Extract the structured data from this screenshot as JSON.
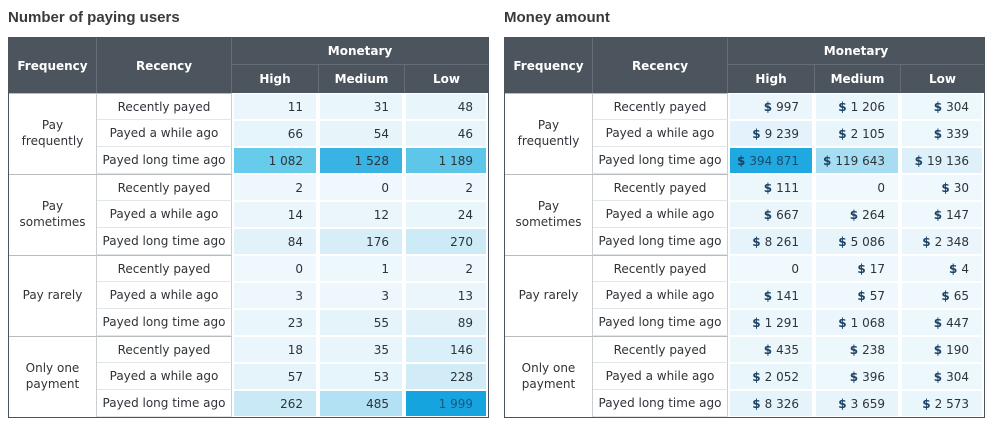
{
  "colors": {
    "header_bg": "#4c545e",
    "heatmap_max_users": "#16a4df",
    "heatmap_max_money": "#1fa9e0",
    "dollar_sign": "#1d4265",
    "frame_border": "#4b535d"
  },
  "chart_data": [
    {
      "type": "heatmap",
      "title": "Number of paying users",
      "headers": {
        "frequency": "Frequency",
        "recency": "Recency",
        "monetary": "Monetary",
        "levels": [
          "High",
          "Medium",
          "Low"
        ]
      },
      "columns": [
        "High",
        "Medium",
        "Low"
      ],
      "groups": [
        {
          "frequency": "Pay frequently",
          "rows": [
            {
              "recency": "Recently payed",
              "cells": [
                {
                  "v": 11,
                  "d": "11",
                  "bg": "#eaf6fc"
                },
                {
                  "v": 31,
                  "d": "31",
                  "bg": "#e9f6fc"
                },
                {
                  "v": 48,
                  "d": "48",
                  "bg": "#e8f5fb"
                }
              ]
            },
            {
              "recency": "Payed a while ago",
              "cells": [
                {
                  "v": 66,
                  "d": "66",
                  "bg": "#e6f4fb"
                },
                {
                  "v": 54,
                  "d": "54",
                  "bg": "#e7f5fb"
                },
                {
                  "v": 46,
                  "d": "46",
                  "bg": "#e8f5fb"
                }
              ]
            },
            {
              "recency": "Payed long time ago",
              "cells": [
                {
                  "v": 1082,
                  "d": "1 082",
                  "bg": "#67cbeb"
                },
                {
                  "v": 1528,
                  "d": "1 528",
                  "bg": "#39b3e3"
                },
                {
                  "v": 1189,
                  "d": "1 189",
                  "bg": "#5ec6e9"
                }
              ]
            }
          ]
        },
        {
          "frequency": "Pay sometimes",
          "rows": [
            {
              "recency": "Recently payed",
              "cells": [
                {
                  "v": 2,
                  "d": "2",
                  "bg": "#edf7fc"
                },
                {
                  "v": 0,
                  "d": "0",
                  "bg": "#eef8fd"
                },
                {
                  "v": 2,
                  "d": "2",
                  "bg": "#edf7fc"
                }
              ]
            },
            {
              "recency": "Payed a while ago",
              "cells": [
                {
                  "v": 14,
                  "d": "14",
                  "bg": "#eaf6fc"
                },
                {
                  "v": 12,
                  "d": "12",
                  "bg": "#ebf6fc"
                },
                {
                  "v": 24,
                  "d": "24",
                  "bg": "#e9f6fc"
                }
              ]
            },
            {
              "recency": "Payed long time ago",
              "cells": [
                {
                  "v": 84,
                  "d": "84",
                  "bg": "#e2f2fa"
                },
                {
                  "v": 176,
                  "d": "176",
                  "bg": "#d7eef8"
                },
                {
                  "v": 270,
                  "d": "270",
                  "bg": "#cdeaf7"
                }
              ]
            }
          ]
        },
        {
          "frequency": "Pay rarely",
          "rows": [
            {
              "recency": "Recently payed",
              "cells": [
                {
                  "v": 0,
                  "d": "0",
                  "bg": "#eef8fd"
                },
                {
                  "v": 1,
                  "d": "1",
                  "bg": "#edf8fd"
                },
                {
                  "v": 2,
                  "d": "2",
                  "bg": "#edf7fc"
                }
              ]
            },
            {
              "recency": "Payed a while ago",
              "cells": [
                {
                  "v": 3,
                  "d": "3",
                  "bg": "#edf7fc"
                },
                {
                  "v": 3,
                  "d": "3",
                  "bg": "#edf7fc"
                },
                {
                  "v": 13,
                  "d": "13",
                  "bg": "#eaf6fc"
                }
              ]
            },
            {
              "recency": "Payed long time ago",
              "cells": [
                {
                  "v": 23,
                  "d": "23",
                  "bg": "#e9f6fc"
                },
                {
                  "v": 55,
                  "d": "55",
                  "bg": "#e5f4fb"
                },
                {
                  "v": 89,
                  "d": "89",
                  "bg": "#e0f1fa"
                }
              ]
            }
          ]
        },
        {
          "frequency": "Only one payment",
          "rows": [
            {
              "recency": "Recently payed",
              "cells": [
                {
                  "v": 18,
                  "d": "18",
                  "bg": "#eaf6fc"
                },
                {
                  "v": 35,
                  "d": "35",
                  "bg": "#e8f5fb"
                },
                {
                  "v": 146,
                  "d": "146",
                  "bg": "#d9eff9"
                }
              ]
            },
            {
              "recency": "Payed a while ago",
              "cells": [
                {
                  "v": 57,
                  "d": "57",
                  "bg": "#e5f4fb"
                },
                {
                  "v": 53,
                  "d": "53",
                  "bg": "#e6f4fb"
                },
                {
                  "v": 228,
                  "d": "228",
                  "bg": "#d1ecf7"
                }
              ]
            },
            {
              "recency": "Payed long time ago",
              "cells": [
                {
                  "v": 262,
                  "d": "262",
                  "bg": "#c9e9f6"
                },
                {
                  "v": 485,
                  "d": "485",
                  "bg": "#b3e1f4"
                },
                {
                  "v": 1999,
                  "d": "1 999",
                  "bg": "#16a4df",
                  "fg": "#155a85"
                }
              ]
            }
          ]
        }
      ]
    },
    {
      "type": "heatmap",
      "title": "Money amount",
      "headers": {
        "frequency": "Frequency",
        "recency": "Recency",
        "monetary": "Monetary",
        "levels": [
          "High",
          "Medium",
          "Low"
        ]
      },
      "columns": [
        "High",
        "Medium",
        "Low"
      ],
      "groups": [
        {
          "frequency": "Pay frequently",
          "rows": [
            {
              "recency": "Recently payed",
              "cells": [
                {
                  "v": 997,
                  "d": "$ 997",
                  "bg": "#eaf6fc"
                },
                {
                  "v": 1206,
                  "d": "$ 1 206",
                  "bg": "#e9f6fc"
                },
                {
                  "v": 304,
                  "d": "$ 304",
                  "bg": "#edf8fd"
                }
              ]
            },
            {
              "recency": "Payed a while ago",
              "cells": [
                {
                  "v": 9239,
                  "d": "$ 9 239",
                  "bg": "#e4f3fb"
                },
                {
                  "v": 2105,
                  "d": "$ 2 105",
                  "bg": "#e8f5fb"
                },
                {
                  "v": 339,
                  "d": "$ 339",
                  "bg": "#edf8fd"
                }
              ]
            },
            {
              "recency": "Payed long time ago",
              "cells": [
                {
                  "v": 394871,
                  "d": "$ 394 871",
                  "bg": "#1fa9e0",
                  "fg": "#1c4a6f"
                },
                {
                  "v": 119643,
                  "d": "$ 119 643",
                  "bg": "#a7ddf2"
                },
                {
                  "v": 19136,
                  "d": "$ 19 136",
                  "bg": "#def0f9"
                }
              ]
            }
          ]
        },
        {
          "frequency": "Pay sometimes",
          "rows": [
            {
              "recency": "Recently payed",
              "cells": [
                {
                  "v": 111,
                  "d": "$ 111",
                  "bg": "#ecf7fc"
                },
                {
                  "v": 0,
                  "d": "0",
                  "bg": "#f0f9fd"
                },
                {
                  "v": 30,
                  "d": "$ 30",
                  "bg": "#eef8fd"
                }
              ]
            },
            {
              "recency": "Payed a while ago",
              "cells": [
                {
                  "v": 667,
                  "d": "$ 667",
                  "bg": "#ebf6fc"
                },
                {
                  "v": 264,
                  "d": "$ 264",
                  "bg": "#edf8fd"
                },
                {
                  "v": 147,
                  "d": "$ 147",
                  "bg": "#eef8fd"
                }
              ]
            },
            {
              "recency": "Payed long time ago",
              "cells": [
                {
                  "v": 8261,
                  "d": "$ 8 261",
                  "bg": "#e5f4fb"
                },
                {
                  "v": 5086,
                  "d": "$ 5 086",
                  "bg": "#e7f5fb"
                },
                {
                  "v": 2348,
                  "d": "$ 2 348",
                  "bg": "#eaf6fc"
                }
              ]
            }
          ]
        },
        {
          "frequency": "Pay rarely",
          "rows": [
            {
              "recency": "Recently payed",
              "cells": [
                {
                  "v": 0,
                  "d": "0",
                  "bg": "#f0f9fd"
                },
                {
                  "v": 17,
                  "d": "$ 17",
                  "bg": "#eef8fd"
                },
                {
                  "v": 4,
                  "d": "$ 4",
                  "bg": "#eef8fd"
                }
              ]
            },
            {
              "recency": "Payed a while ago",
              "cells": [
                {
                  "v": 141,
                  "d": "$ 141",
                  "bg": "#edf8fd"
                },
                {
                  "v": 57,
                  "d": "$ 57",
                  "bg": "#eef8fd"
                },
                {
                  "v": 65,
                  "d": "$ 65",
                  "bg": "#eef8fd"
                }
              ]
            },
            {
              "recency": "Payed long time ago",
              "cells": [
                {
                  "v": 1291,
                  "d": "$ 1 291",
                  "bg": "#eaf6fc"
                },
                {
                  "v": 1068,
                  "d": "$ 1 068",
                  "bg": "#ebf6fc"
                },
                {
                  "v": 447,
                  "d": "$ 447",
                  "bg": "#edf8fd"
                }
              ]
            }
          ]
        },
        {
          "frequency": "Only one payment",
          "rows": [
            {
              "recency": "Recently payed",
              "cells": [
                {
                  "v": 435,
                  "d": "$ 435",
                  "bg": "#ecf7fc"
                },
                {
                  "v": 238,
                  "d": "$ 238",
                  "bg": "#edf8fd"
                },
                {
                  "v": 190,
                  "d": "$ 190",
                  "bg": "#edf8fd"
                }
              ]
            },
            {
              "recency": "Payed a while ago",
              "cells": [
                {
                  "v": 2052,
                  "d": "$ 2 052",
                  "bg": "#e9f6fc"
                },
                {
                  "v": 396,
                  "d": "$ 396",
                  "bg": "#edf8fd"
                },
                {
                  "v": 304,
                  "d": "$ 304",
                  "bg": "#edf8fd"
                }
              ]
            },
            {
              "recency": "Payed long time ago",
              "cells": [
                {
                  "v": 8326,
                  "d": "$ 8 326",
                  "bg": "#e5f4fb"
                },
                {
                  "v": 3659,
                  "d": "$ 3 659",
                  "bg": "#e7f5fb"
                },
                {
                  "v": 2573,
                  "d": "$ 2 573",
                  "bg": "#e9f6fc"
                }
              ]
            }
          ]
        }
      ]
    }
  ]
}
